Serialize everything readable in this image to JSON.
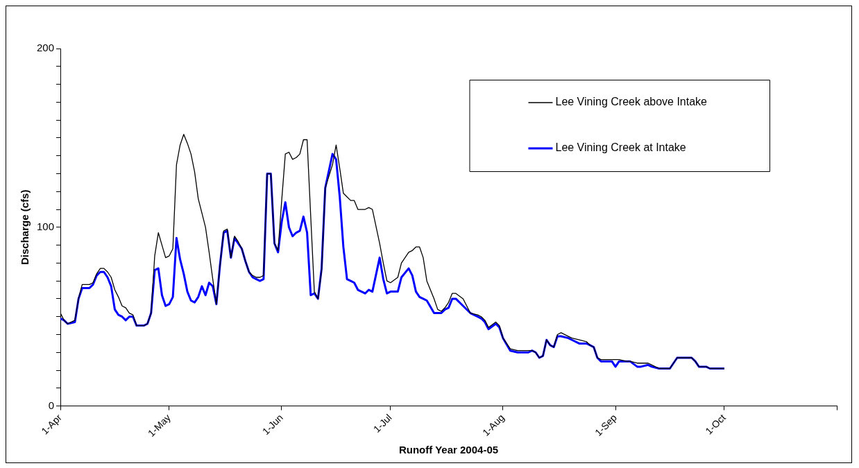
{
  "chart_data": {
    "type": "line",
    "xlabel": "Runoff Year 2004-05",
    "ylabel": "Discharge (cfs)",
    "x": [
      "2004-04-01",
      "2004-04-02",
      "2004-04-03",
      "2004-04-05",
      "2004-04-06",
      "2004-04-07",
      "2004-04-09",
      "2004-04-10",
      "2004-04-11",
      "2004-04-12",
      "2004-04-13",
      "2004-04-14",
      "2004-04-15",
      "2004-04-16",
      "2004-04-17",
      "2004-04-18",
      "2004-04-19",
      "2004-04-20",
      "2004-04-21",
      "2004-04-22",
      "2004-04-24",
      "2004-04-25",
      "2004-04-26",
      "2004-04-27",
      "2004-04-28",
      "2004-04-29",
      "2004-04-30",
      "2004-05-01",
      "2004-05-02",
      "2004-05-03",
      "2004-05-04",
      "2004-05-05",
      "2004-05-06",
      "2004-05-07",
      "2004-05-08",
      "2004-05-09",
      "2004-05-10",
      "2004-05-11",
      "2004-05-12",
      "2004-05-13",
      "2004-05-14",
      "2004-05-15",
      "2004-05-16",
      "2004-05-17",
      "2004-05-18",
      "2004-05-19",
      "2004-05-20",
      "2004-05-21",
      "2004-05-22",
      "2004-05-23",
      "2004-05-24",
      "2004-05-25",
      "2004-05-26",
      "2004-05-27",
      "2004-05-28",
      "2004-05-29",
      "2004-05-30",
      "2004-05-31",
      "2004-06-01",
      "2004-06-02",
      "2004-06-03",
      "2004-06-04",
      "2004-06-05",
      "2004-06-06",
      "2004-06-07",
      "2004-06-08",
      "2004-06-09",
      "2004-06-10",
      "2004-06-11",
      "2004-06-12",
      "2004-06-13",
      "2004-06-15",
      "2004-06-16",
      "2004-06-17",
      "2004-06-18",
      "2004-06-19",
      "2004-06-20",
      "2004-06-21",
      "2004-06-22",
      "2004-06-24",
      "2004-06-25",
      "2004-06-26",
      "2004-06-28",
      "2004-06-29",
      "2004-06-30",
      "2004-07-01",
      "2004-07-03",
      "2004-07-04",
      "2004-07-06",
      "2004-07-07",
      "2004-07-08",
      "2004-07-09",
      "2004-07-10",
      "2004-07-11",
      "2004-07-13",
      "2004-07-14",
      "2004-07-15",
      "2004-07-16",
      "2004-07-17",
      "2004-07-18",
      "2004-07-19",
      "2004-07-21",
      "2004-07-23",
      "2004-07-25",
      "2004-07-26",
      "2004-07-27",
      "2004-07-28",
      "2004-07-30",
      "2004-07-31",
      "2004-08-01",
      "2004-08-03",
      "2004-08-05",
      "2004-08-08",
      "2004-08-09",
      "2004-08-10",
      "2004-08-11",
      "2004-08-12",
      "2004-08-13",
      "2004-08-14",
      "2004-08-15",
      "2004-08-16",
      "2004-08-17",
      "2004-08-19",
      "2004-08-20",
      "2004-08-22",
      "2004-08-24",
      "2004-08-25",
      "2004-08-26",
      "2004-08-27",
      "2004-08-28",
      "2004-08-30",
      "2004-08-31",
      "2004-09-01",
      "2004-09-02",
      "2004-09-04",
      "2004-09-05",
      "2004-09-07",
      "2004-09-08",
      "2004-09-10",
      "2004-09-11",
      "2004-09-13",
      "2004-09-16",
      "2004-09-18",
      "2004-09-22",
      "2004-09-23",
      "2004-09-24",
      "2004-09-26",
      "2004-09-27",
      "2004-10-01"
    ],
    "series": [
      {
        "name": "Lee Vining Creek above Intake",
        "color": "#000000",
        "values": [
          52,
          48,
          46,
          48,
          60,
          68,
          68,
          69,
          74,
          77,
          77,
          75,
          72,
          65,
          61,
          56,
          55,
          52,
          51,
          45,
          45,
          46,
          52,
          84,
          97,
          90,
          83,
          84,
          88,
          135,
          146,
          152,
          147,
          141,
          131,
          116,
          108,
          100,
          86,
          71,
          57,
          79,
          98,
          99,
          83,
          95,
          92,
          88,
          81,
          75,
          73,
          72,
          72,
          73,
          130,
          130,
          91,
          87,
          115,
          141,
          142,
          138,
          139,
          141,
          149,
          149,
          106,
          64,
          60,
          76,
          122,
          135,
          146,
          133,
          119,
          117,
          115,
          115,
          110,
          110,
          111,
          110,
          91,
          80,
          70,
          69,
          72,
          80,
          86,
          87,
          89,
          89,
          83,
          70,
          60,
          54,
          53,
          55,
          58,
          63,
          63,
          60,
          52,
          51,
          50,
          48,
          44,
          47,
          45,
          38,
          32,
          31,
          31,
          31,
          30,
          27,
          28,
          37,
          34,
          33,
          40,
          41,
          39,
          38,
          37,
          36,
          34,
          33,
          27,
          26,
          26,
          26,
          26,
          26,
          25,
          25,
          24,
          24,
          24,
          23,
          21,
          21,
          27,
          27,
          25,
          22,
          22,
          21,
          21
        ]
      },
      {
        "name": "Lee Vining Creek at Intake",
        "color": "#0000ff",
        "values": [
          49,
          48,
          46,
          47,
          60,
          66,
          66,
          68,
          73,
          75,
          75,
          72,
          67,
          54,
          51,
          50,
          48,
          50,
          50,
          45,
          45,
          46,
          52,
          76,
          77,
          62,
          56,
          57,
          61,
          94,
          82,
          74,
          64,
          59,
          58,
          61,
          67,
          62,
          69,
          67,
          57,
          79,
          97,
          98,
          83,
          94,
          91,
          88,
          81,
          75,
          72,
          71,
          70,
          71,
          130,
          130,
          91,
          86,
          103,
          114,
          100,
          95,
          97,
          98,
          106,
          97,
          62,
          63,
          60,
          77,
          122,
          141,
          138,
          117,
          89,
          71,
          70,
          69,
          65,
          63,
          65,
          64,
          83,
          71,
          63,
          64,
          64,
          72,
          77,
          73,
          64,
          61,
          60,
          59,
          52,
          52,
          52,
          54,
          55,
          60,
          60,
          56,
          52,
          50,
          49,
          47,
          43,
          46,
          44,
          38,
          31,
          30,
          30,
          31,
          30,
          27,
          28,
          37,
          34,
          33,
          39,
          39,
          38,
          37,
          35,
          35,
          34,
          33,
          27,
          25,
          25,
          25,
          22,
          25,
          25,
          25,
          22,
          22,
          23,
          22,
          21,
          21,
          27,
          27,
          25,
          22,
          22,
          21,
          21
        ]
      }
    ],
    "xlim": [
      "2004-04-01",
      "2004-11-01"
    ],
    "xticks": [
      {
        "value": "2004-04-01",
        "label": "1-Apr"
      },
      {
        "value": "2004-05-01",
        "label": "1-May"
      },
      {
        "value": "2004-06-01",
        "label": "1-Jun"
      },
      {
        "value": "2004-07-01",
        "label": "1-Jul"
      },
      {
        "value": "2004-08-01",
        "label": "1-Aug"
      },
      {
        "value": "2004-09-01",
        "label": "1-Sep"
      },
      {
        "value": "2004-10-01",
        "label": "1-Oct"
      },
      {
        "value": "2004-11-01",
        "label": null
      }
    ],
    "ylim": [
      0,
      200
    ],
    "yticks": [
      0,
      {
        "value": 10,
        "label": null
      },
      {
        "value": 20,
        "label": null
      },
      {
        "value": 30,
        "label": null
      },
      {
        "value": 40,
        "label": null
      },
      {
        "value": 50,
        "label": null
      },
      {
        "value": 60,
        "label": null
      },
      {
        "value": 70,
        "label": null
      },
      {
        "value": 80,
        "label": null
      },
      {
        "value": 90,
        "label": null
      },
      100,
      {
        "value": 110,
        "label": null
      },
      {
        "value": 120,
        "label": null
      },
      {
        "value": 130,
        "label": null
      },
      {
        "value": 140,
        "label": null
      },
      {
        "value": 150,
        "label": null
      },
      {
        "value": 160,
        "label": null
      },
      {
        "value": 170,
        "label": null
      },
      {
        "value": 180,
        "label": null
      },
      {
        "value": 190,
        "label": null
      },
      200
    ],
    "grid": false,
    "legend": "top right",
    "marker": "none",
    "line_style": "solid"
  }
}
